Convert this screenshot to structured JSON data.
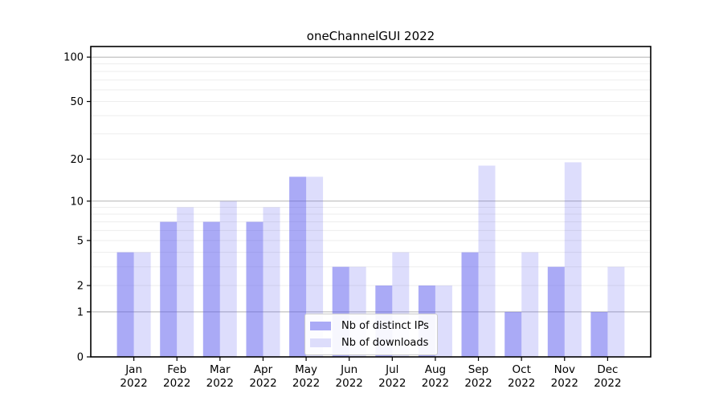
{
  "chart_data": {
    "type": "bar",
    "title": "oneChannelGUI 2022",
    "scale": "log10(value+1)",
    "categories": [
      "Jan",
      "Feb",
      "Mar",
      "Apr",
      "May",
      "Jun",
      "Jul",
      "Aug",
      "Sep",
      "Oct",
      "Nov",
      "Dec"
    ],
    "category_year": "2022",
    "series": [
      {
        "name": "Nb of distinct IPs",
        "fill": "rgba(85,85,238,0.5)",
        "swatch": "#aaaaf6",
        "values": [
          4,
          7,
          7,
          7,
          15,
          3,
          2,
          2,
          4,
          1,
          3,
          1
        ]
      },
      {
        "name": "Nb of downloads",
        "fill": "rgba(85,85,238,0.2)",
        "swatch": "#ddddfb",
        "values": [
          4,
          9,
          10,
          9,
          15,
          3,
          4,
          2,
          18,
          4,
          19,
          3
        ]
      }
    ],
    "y_ticks": [
      0,
      1,
      2,
      5,
      10,
      20,
      50,
      100
    ],
    "ylim": [
      0,
      115
    ],
    "major_gridlines": [
      1,
      10,
      100
    ],
    "minor_gridlines": [
      2,
      3,
      4,
      5,
      6,
      7,
      8,
      9,
      20,
      30,
      40,
      50,
      60,
      70,
      80,
      90
    ],
    "grid": "on",
    "legend_position": "lower center",
    "colors": {
      "major_grid": "#b3b3b3",
      "minor_grid": "#ededed",
      "axis": "#000000",
      "text": "#000000"
    }
  }
}
